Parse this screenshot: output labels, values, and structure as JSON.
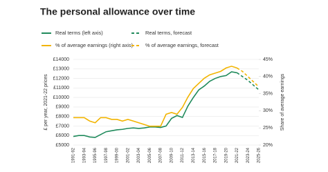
{
  "chart_data": {
    "type": "line",
    "title": "The personal allowance over time",
    "y_label": "£ per year, 2021-22 prices",
    "y2_label": "Share of average earnings",
    "categories": [
      "1991-92",
      null,
      "1993-94",
      null,
      "1995-96",
      null,
      "1997-98",
      null,
      "1999-00",
      null,
      "2001-02",
      null,
      "2003-04",
      null,
      "2005-06",
      null,
      "2007-08",
      null,
      "2009-10",
      null,
      "2011-12",
      null,
      "2013-14",
      null,
      "2015-16",
      null,
      "2017-18",
      null,
      "2019-20",
      null,
      "2021-22",
      null,
      "2023-24",
      null,
      "2025-26"
    ],
    "ylim": [
      5000,
      14000
    ],
    "yticks": [
      {
        "value": 5000,
        "label": "£5000"
      },
      {
        "value": 6000,
        "label": "£6000"
      },
      {
        "value": 7000,
        "label": "£7000"
      },
      {
        "value": 8000,
        "label": "£8000"
      },
      {
        "value": 9000,
        "label": "£9000"
      },
      {
        "value": 10000,
        "label": "£10000"
      },
      {
        "value": 11000,
        "label": "£11000"
      },
      {
        "value": 12000,
        "label": "£12000"
      },
      {
        "value": 13000,
        "label": "£13000"
      },
      {
        "value": 14000,
        "label": "£14000"
      }
    ],
    "y2lim": [
      20,
      45
    ],
    "y2ticks": [
      {
        "value": 20,
        "label": "20%"
      },
      {
        "value": 25,
        "label": "25%"
      },
      {
        "value": 30,
        "label": "30%"
      },
      {
        "value": 35,
        "label": "35%"
      },
      {
        "value": 40,
        "label": "40%"
      },
      {
        "value": 45,
        "label": "45%"
      }
    ],
    "series": [
      {
        "name": "Real terms (left axis)",
        "color": "#1f8a5b",
        "dashed": false,
        "values": [
          5900,
          6000,
          6000,
          5850,
          5800,
          6100,
          6400,
          6500,
          6600,
          6650,
          6750,
          6800,
          6750,
          6800,
          6900,
          6900,
          6850,
          7000,
          7800,
          8100,
          7900,
          9100,
          10000,
          10800,
          11200,
          11700,
          12000,
          12200,
          12300,
          12700,
          12600,
          null,
          null,
          null,
          null
        ]
      },
      {
        "name": "Real terms, forecast",
        "color": "#1f8a5b",
        "dashed": true,
        "values": [
          null,
          null,
          null,
          null,
          null,
          null,
          null,
          null,
          null,
          null,
          null,
          null,
          null,
          null,
          null,
          null,
          null,
          null,
          null,
          null,
          null,
          null,
          null,
          null,
          null,
          null,
          null,
          null,
          null,
          null,
          12600,
          12200,
          11800,
          11300,
          10800
        ]
      },
      {
        "name": "% of average earnings (right axis)",
        "color": "#f2b400",
        "dashed": false,
        "axis": "y2",
        "values": [
          28,
          28,
          28,
          27,
          26.5,
          28,
          28,
          27.5,
          27.5,
          27,
          27.5,
          27,
          26.5,
          26,
          25.5,
          25.5,
          25.5,
          29,
          29.5,
          29,
          31,
          34,
          36.5,
          38,
          39.5,
          40.5,
          41,
          41.5,
          42.5,
          43,
          42.5,
          null,
          null,
          null,
          null
        ]
      },
      {
        "name": "% of average earnings, forecast",
        "color": "#f2b400",
        "dashed": true,
        "axis": "y2",
        "values": [
          null,
          null,
          null,
          null,
          null,
          null,
          null,
          null,
          null,
          null,
          null,
          null,
          null,
          null,
          null,
          null,
          null,
          null,
          null,
          null,
          null,
          null,
          null,
          null,
          null,
          null,
          null,
          null,
          null,
          null,
          42.5,
          41.5,
          40,
          38.5,
          37
        ]
      }
    ]
  }
}
